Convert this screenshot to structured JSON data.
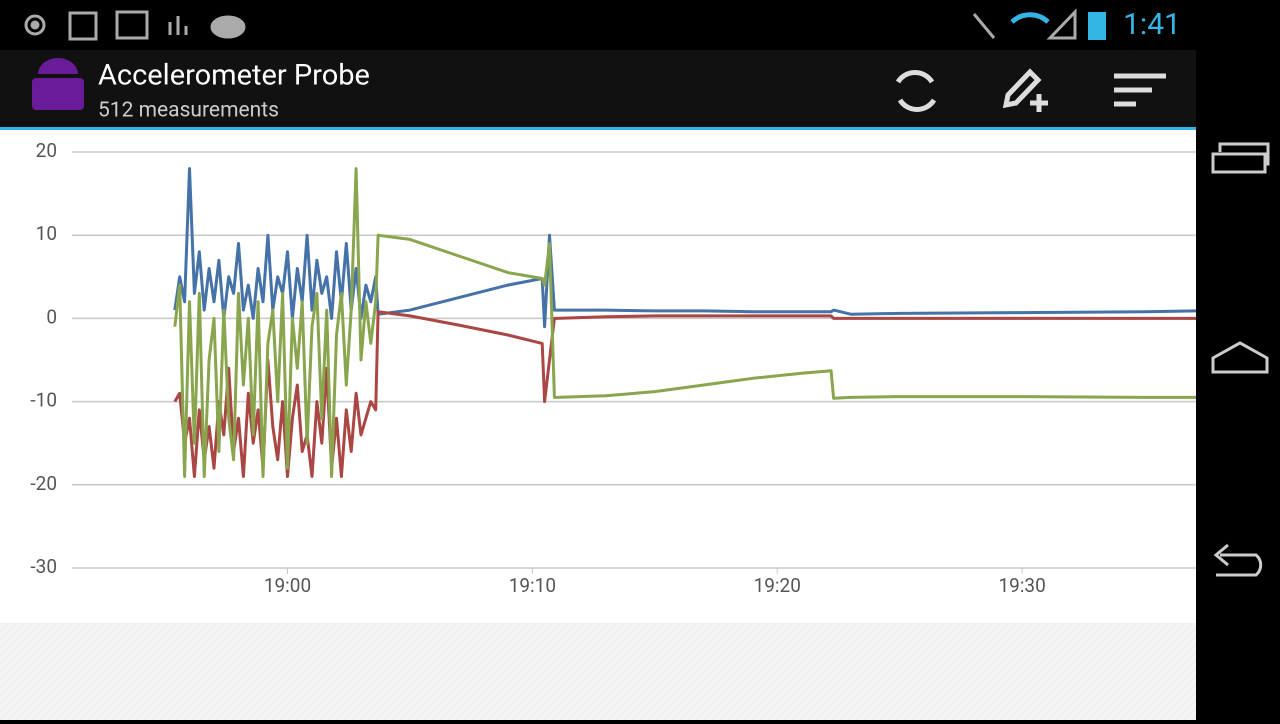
{
  "status_bar": {
    "time": "1:41"
  },
  "app_bar": {
    "title": "Accelerometer Probe",
    "subtitle": "512 measurements"
  },
  "chart_data": {
    "type": "line",
    "x": [
      1135.4,
      1135.6,
      1135.8,
      1136.0,
      1136.2,
      1136.4,
      1136.6,
      1136.8,
      1137.0,
      1137.2,
      1137.4,
      1137.6,
      1137.8,
      1138.0,
      1138.2,
      1138.4,
      1138.6,
      1138.8,
      1139.0,
      1139.2,
      1139.4,
      1139.6,
      1139.8,
      1140.0,
      1140.2,
      1140.4,
      1140.6,
      1140.8,
      1141.0,
      1141.2,
      1141.4,
      1141.6,
      1141.8,
      1142.0,
      1142.2,
      1142.4,
      1142.6,
      1142.8,
      1143.0,
      1143.2,
      1143.4,
      1143.6,
      1143.7,
      1145,
      1147,
      1149,
      1150.4,
      1150.5,
      1150.7,
      1150.9,
      1151,
      1153,
      1155,
      1157,
      1159,
      1161,
      1162.2,
      1162.3,
      1163,
      1165,
      1170,
      1175,
      1177.1
    ],
    "series": [
      {
        "color": "#4572a7",
        "values": [
          1,
          5,
          2,
          18,
          3,
          8,
          1,
          6,
          2,
          7,
          0,
          5,
          3,
          9,
          1,
          4,
          0,
          6,
          2,
          10,
          1,
          5,
          3,
          8,
          0,
          6,
          2,
          10,
          1,
          7,
          3,
          5,
          0,
          8,
          2,
          9,
          1,
          6,
          0,
          4,
          2,
          5,
          0.5,
          1,
          2.5,
          4,
          4.8,
          -1,
          10,
          1,
          1,
          1,
          0.9,
          0.9,
          0.8,
          0.8,
          0.8,
          1,
          0.5,
          0.6,
          0.7,
          0.8,
          0.9
        ]
      },
      {
        "color": "#aa4643",
        "values": [
          -10,
          -9,
          -15,
          -12,
          -19,
          -11,
          -17,
          -13,
          -18,
          -10,
          -14,
          -6,
          -16,
          -12,
          -19,
          -9,
          -15,
          -11,
          -18,
          -5,
          -13,
          -17,
          -10,
          -19,
          -12,
          -8,
          -16,
          -14,
          -19,
          -10,
          -15,
          -6,
          -18,
          -12,
          -19,
          -11,
          -16,
          -9,
          -14,
          -12,
          -10,
          -11,
          0.8,
          0.3,
          -0.8,
          -2,
          -3,
          -10,
          -5,
          0,
          0,
          0.2,
          0.3,
          0.3,
          0.3,
          0.3,
          0.3,
          0,
          0,
          0,
          0,
          0,
          0
        ]
      },
      {
        "color": "#89a54e",
        "values": [
          -1,
          4,
          -19,
          2,
          -15,
          3,
          -19,
          -5,
          0,
          -16,
          1,
          -12,
          -17,
          3,
          -8,
          0,
          -14,
          2,
          -19,
          -3,
          1,
          -10,
          3,
          -18,
          0,
          -6,
          2,
          -15,
          -1,
          3,
          -12,
          1,
          -19,
          -2,
          3,
          -8,
          1,
          18,
          -5,
          2,
          -3,
          2,
          10,
          9.5,
          7.5,
          5.5,
          4.8,
          4,
          9,
          -9.5,
          -9.5,
          -9.3,
          -8.8,
          -8,
          -7.2,
          -6.6,
          -6.3,
          -9.6,
          -9.5,
          -9.4,
          -9.4,
          -9.5,
          -9.5
        ]
      }
    ],
    "xlim": [
      1131.2,
      1177.1
    ],
    "xticks": [
      {
        "value": 1140,
        "label": "19:00"
      },
      {
        "value": 1150,
        "label": "19:10"
      },
      {
        "value": 1160,
        "label": "19:20"
      },
      {
        "value": 1170,
        "label": "19:30"
      }
    ],
    "ylim": [
      -30,
      20
    ],
    "yticks": [
      -30,
      -20,
      -10,
      0,
      10,
      20
    ],
    "grid": true
  }
}
